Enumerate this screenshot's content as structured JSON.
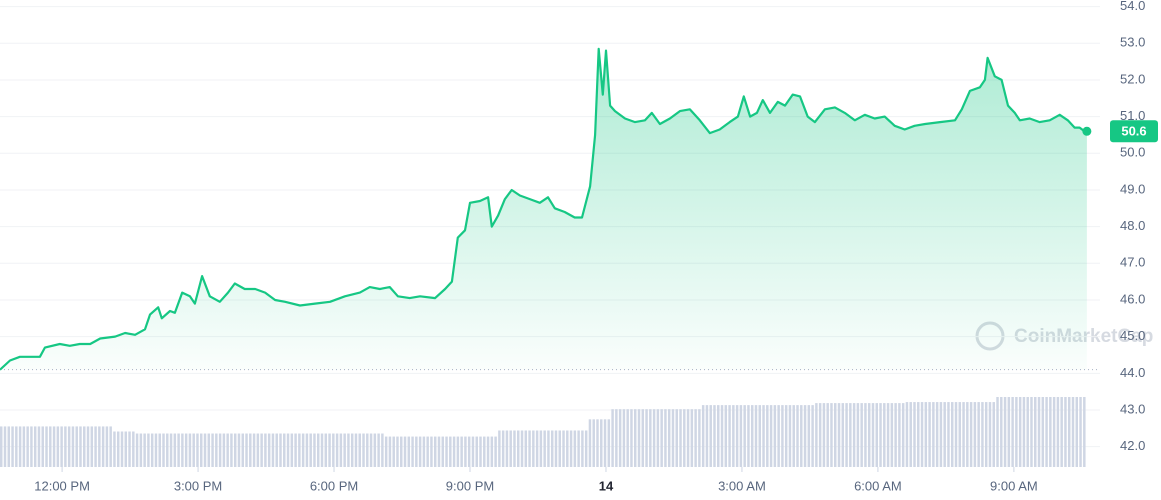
{
  "chart_data": {
    "type": "line",
    "watermark": "CoinMarketCap",
    "current_price": 50.6,
    "open": 44.1,
    "xlim": [
      10.63,
      34.9
    ],
    "xticks": [
      {
        "value": 12,
        "label": "12:00 PM"
      },
      {
        "value": 15,
        "label": "3:00 PM"
      },
      {
        "value": 18,
        "label": "6:00 PM"
      },
      {
        "value": 21,
        "label": "9:00 PM"
      },
      {
        "value": 24,
        "label": "14"
      },
      {
        "value": 27,
        "label": "3:00 AM"
      },
      {
        "value": 30,
        "label": "6:00 AM"
      },
      {
        "value": 33,
        "label": "9:00 AM"
      }
    ],
    "ylim": [
      41.5,
      54.18
    ],
    "yticks": [
      {
        "value": 42,
        "label": "42.0"
      },
      {
        "value": 43,
        "label": "43.0"
      },
      {
        "value": 44,
        "label": "44.0"
      },
      {
        "value": 45,
        "label": "45.0"
      },
      {
        "value": 46,
        "label": "46.0"
      },
      {
        "value": 47,
        "label": "47.0"
      },
      {
        "value": 48,
        "label": "48.0"
      },
      {
        "value": 49,
        "label": "49.0"
      },
      {
        "value": 50,
        "label": "50.0"
      },
      {
        "value": 51,
        "label": "51.0"
      },
      {
        "value": 52,
        "label": "52.0"
      },
      {
        "value": 53,
        "label": "53.0"
      },
      {
        "value": 54,
        "label": "54.0"
      }
    ],
    "grid": true,
    "series": [
      {
        "color": "#16c784",
        "x": [
          10.63,
          10.85,
          11.07,
          11.51,
          11.62,
          11.95,
          12.17,
          12.39,
          12.62,
          12.84,
          13.17,
          13.39,
          13.61,
          13.83,
          13.94,
          14.12,
          14.2,
          14.38,
          14.49,
          14.65,
          14.82,
          14.93,
          15.09,
          15.26,
          15.48,
          15.66,
          15.81,
          16.03,
          16.26,
          16.48,
          16.7,
          16.92,
          17.25,
          17.58,
          17.91,
          18.24,
          18.57,
          18.79,
          19.01,
          19.23,
          19.41,
          19.67,
          19.9,
          20.23,
          20.45,
          20.6,
          20.73,
          20.89,
          21.0,
          21.22,
          21.4,
          21.48,
          21.62,
          21.77,
          21.92,
          22.1,
          22.32,
          22.54,
          22.72,
          22.87,
          23.09,
          23.31,
          23.47,
          23.65,
          23.76,
          23.84,
          23.93,
          24.0,
          24.09,
          24.2,
          24.42,
          24.64,
          24.86,
          25.01,
          25.19,
          25.41,
          25.63,
          25.85,
          26.07,
          26.29,
          26.51,
          26.73,
          26.91,
          27.04,
          27.18,
          27.33,
          27.46,
          27.62,
          27.79,
          27.95,
          28.12,
          28.28,
          28.45,
          28.61,
          28.83,
          29.05,
          29.27,
          29.49,
          29.71,
          29.93,
          30.15,
          30.37,
          30.59,
          30.81,
          31.04,
          31.37,
          31.7,
          31.85,
          32.03,
          32.25,
          32.36,
          32.42,
          32.58,
          32.73,
          32.87,
          33.02,
          33.13,
          33.35,
          33.57,
          33.79,
          34.01,
          34.19,
          34.34,
          34.45,
          34.61
        ],
        "values": [
          44.1,
          44.35,
          44.45,
          44.45,
          44.7,
          44.8,
          44.75,
          44.8,
          44.8,
          44.95,
          45.0,
          45.1,
          45.05,
          45.2,
          45.6,
          45.8,
          45.5,
          45.7,
          45.65,
          46.2,
          46.1,
          45.9,
          46.65,
          46.1,
          45.95,
          46.2,
          46.45,
          46.3,
          46.3,
          46.2,
          46.0,
          45.95,
          45.85,
          45.9,
          45.95,
          46.1,
          46.2,
          46.35,
          46.3,
          46.35,
          46.1,
          46.05,
          46.1,
          46.05,
          46.3,
          46.5,
          47.7,
          47.9,
          48.65,
          48.7,
          48.8,
          48.0,
          48.3,
          48.75,
          49.0,
          48.85,
          48.75,
          48.65,
          48.8,
          48.5,
          48.4,
          48.25,
          48.25,
          49.1,
          50.5,
          52.85,
          51.6,
          52.8,
          51.3,
          51.15,
          50.95,
          50.85,
          50.9,
          51.1,
          50.8,
          50.95,
          51.15,
          51.2,
          50.9,
          50.55,
          50.65,
          50.85,
          51.0,
          51.55,
          51.0,
          51.1,
          51.45,
          51.1,
          51.4,
          51.3,
          51.6,
          51.55,
          51.0,
          50.85,
          51.2,
          51.25,
          51.1,
          50.9,
          51.05,
          50.95,
          51.0,
          50.75,
          50.65,
          50.75,
          50.8,
          50.85,
          50.9,
          51.2,
          51.7,
          51.8,
          52.0,
          52.6,
          52.1,
          52.0,
          51.3,
          51.1,
          50.9,
          50.95,
          50.85,
          50.9,
          51.05,
          50.9,
          50.7,
          50.7,
          50.55
        ]
      }
    ],
    "volume": [
      40,
      40,
      40,
      40,
      40,
      35,
      33,
      33,
      33,
      33,
      33,
      33,
      33,
      33,
      33,
      33,
      33,
      30,
      30,
      30,
      30,
      30,
      36,
      36,
      36,
      36,
      47,
      57,
      57,
      57,
      57,
      61,
      61,
      61,
      61,
      61,
      63,
      63,
      63,
      63,
      64,
      64,
      64,
      64,
      69,
      69,
      69,
      69
    ],
    "volume_color": "#cfd6e4"
  }
}
